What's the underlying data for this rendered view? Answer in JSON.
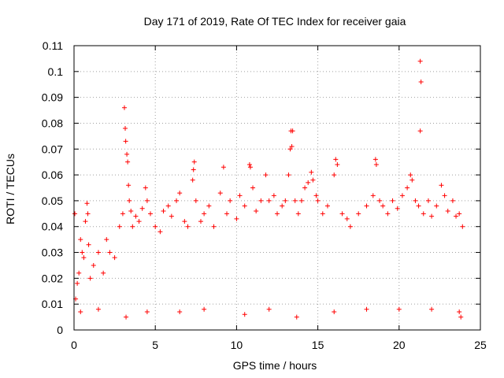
{
  "chart_data": {
    "type": "scatter",
    "title": "Day 171 of 2019, Rate Of TEC Index for receiver gaia",
    "xlabel": "GPS time / hours",
    "ylabel": "ROTI / TECUs",
    "xlim": [
      0,
      25
    ],
    "ylim": [
      0,
      0.11
    ],
    "xticks": [
      0,
      5,
      10,
      15,
      20,
      25
    ],
    "xtick_labels": [
      "0",
      "5",
      "10",
      "15",
      "20",
      "25"
    ],
    "yticks": [
      0,
      0.01,
      0.02,
      0.03,
      0.04,
      0.05,
      0.06,
      0.07,
      0.08,
      0.09,
      0.1,
      0.11
    ],
    "ytick_labels": [
      "0",
      "0.01",
      "0.02",
      "0.03",
      "0.04",
      "0.05",
      "0.06",
      "0.07",
      "0.08",
      "0.09",
      "0.1",
      "0.11"
    ],
    "grid": true,
    "marker": "+",
    "color": "#ff0000",
    "series": [
      {
        "name": "ROTI",
        "points": [
          [
            0.05,
            0.045
          ],
          [
            0.1,
            0.012
          ],
          [
            0.2,
            0.018
          ],
          [
            0.3,
            0.022
          ],
          [
            0.4,
            0.035
          ],
          [
            0.5,
            0.03
          ],
          [
            0.6,
            0.028
          ],
          [
            0.7,
            0.042
          ],
          [
            0.8,
            0.049
          ],
          [
            0.85,
            0.045
          ],
          [
            0.9,
            0.033
          ],
          [
            1.0,
            0.02
          ],
          [
            1.2,
            0.025
          ],
          [
            1.5,
            0.03
          ],
          [
            1.8,
            0.022
          ],
          [
            2.0,
            0.035
          ],
          [
            2.2,
            0.03
          ],
          [
            2.5,
            0.028
          ],
          [
            2.8,
            0.04
          ],
          [
            3.0,
            0.045
          ],
          [
            3.1,
            0.086
          ],
          [
            3.15,
            0.078
          ],
          [
            3.18,
            0.073
          ],
          [
            3.25,
            0.068
          ],
          [
            3.3,
            0.065
          ],
          [
            3.35,
            0.056
          ],
          [
            3.4,
            0.05
          ],
          [
            3.5,
            0.046
          ],
          [
            3.6,
            0.04
          ],
          [
            3.8,
            0.044
          ],
          [
            4.0,
            0.042
          ],
          [
            4.2,
            0.047
          ],
          [
            4.4,
            0.055
          ],
          [
            4.5,
            0.05
          ],
          [
            4.7,
            0.045
          ],
          [
            5.0,
            0.04
          ],
          [
            5.3,
            0.038
          ],
          [
            5.5,
            0.046
          ],
          [
            5.8,
            0.048
          ],
          [
            6.0,
            0.044
          ],
          [
            6.3,
            0.05
          ],
          [
            6.5,
            0.053
          ],
          [
            6.8,
            0.042
          ],
          [
            7.0,
            0.04
          ],
          [
            7.3,
            0.058
          ],
          [
            7.35,
            0.062
          ],
          [
            7.4,
            0.065
          ],
          [
            7.5,
            0.05
          ],
          [
            7.8,
            0.042
          ],
          [
            8.0,
            0.045
          ],
          [
            8.3,
            0.048
          ],
          [
            8.6,
            0.04
          ],
          [
            9.0,
            0.053
          ],
          [
            9.2,
            0.063
          ],
          [
            9.4,
            0.045
          ],
          [
            9.6,
            0.05
          ],
          [
            10.0,
            0.043
          ],
          [
            10.2,
            0.052
          ],
          [
            10.5,
            0.048
          ],
          [
            10.8,
            0.064
          ],
          [
            10.85,
            0.063
          ],
          [
            11.0,
            0.055
          ],
          [
            11.2,
            0.046
          ],
          [
            11.5,
            0.05
          ],
          [
            11.8,
            0.06
          ],
          [
            12.0,
            0.05
          ],
          [
            12.3,
            0.052
          ],
          [
            12.5,
            0.045
          ],
          [
            12.8,
            0.048
          ],
          [
            13.0,
            0.05
          ],
          [
            13.2,
            0.06
          ],
          [
            13.35,
            0.077
          ],
          [
            13.45,
            0.077
          ],
          [
            13.4,
            0.071
          ],
          [
            13.3,
            0.07
          ],
          [
            13.6,
            0.05
          ],
          [
            13.8,
            0.045
          ],
          [
            14.0,
            0.05
          ],
          [
            14.2,
            0.055
          ],
          [
            14.4,
            0.057
          ],
          [
            14.6,
            0.061
          ],
          [
            14.7,
            0.058
          ],
          [
            14.9,
            0.052
          ],
          [
            15.0,
            0.05
          ],
          [
            15.3,
            0.045
          ],
          [
            15.6,
            0.048
          ],
          [
            16.0,
            0.06
          ],
          [
            16.1,
            0.066
          ],
          [
            16.2,
            0.064
          ],
          [
            16.5,
            0.045
          ],
          [
            16.8,
            0.043
          ],
          [
            17.0,
            0.04
          ],
          [
            17.5,
            0.045
          ],
          [
            18.0,
            0.048
          ],
          [
            18.4,
            0.052
          ],
          [
            18.55,
            0.066
          ],
          [
            18.6,
            0.064
          ],
          [
            18.8,
            0.05
          ],
          [
            19.0,
            0.048
          ],
          [
            19.3,
            0.045
          ],
          [
            19.6,
            0.05
          ],
          [
            19.9,
            0.047
          ],
          [
            20.2,
            0.052
          ],
          [
            20.5,
            0.055
          ],
          [
            20.7,
            0.06
          ],
          [
            20.8,
            0.058
          ],
          [
            21.0,
            0.05
          ],
          [
            21.2,
            0.048
          ],
          [
            21.3,
            0.104
          ],
          [
            21.35,
            0.096
          ],
          [
            21.3,
            0.077
          ],
          [
            21.5,
            0.045
          ],
          [
            21.8,
            0.05
          ],
          [
            22.0,
            0.044
          ],
          [
            22.3,
            0.048
          ],
          [
            22.6,
            0.056
          ],
          [
            22.8,
            0.052
          ],
          [
            23.0,
            0.046
          ],
          [
            23.3,
            0.05
          ],
          [
            23.5,
            0.044
          ],
          [
            23.7,
            0.045
          ],
          [
            23.9,
            0.04
          ],
          [
            0.4,
            0.007
          ],
          [
            1.5,
            0.008
          ],
          [
            3.2,
            0.005
          ],
          [
            4.5,
            0.007
          ],
          [
            6.5,
            0.007
          ],
          [
            8.0,
            0.008
          ],
          [
            10.5,
            0.006
          ],
          [
            12.0,
            0.008
          ],
          [
            13.7,
            0.005
          ],
          [
            16.0,
            0.007
          ],
          [
            18.0,
            0.008
          ],
          [
            20.0,
            0.008
          ],
          [
            22.0,
            0.008
          ],
          [
            23.7,
            0.007
          ],
          [
            23.8,
            0.005
          ]
        ]
      }
    ]
  }
}
